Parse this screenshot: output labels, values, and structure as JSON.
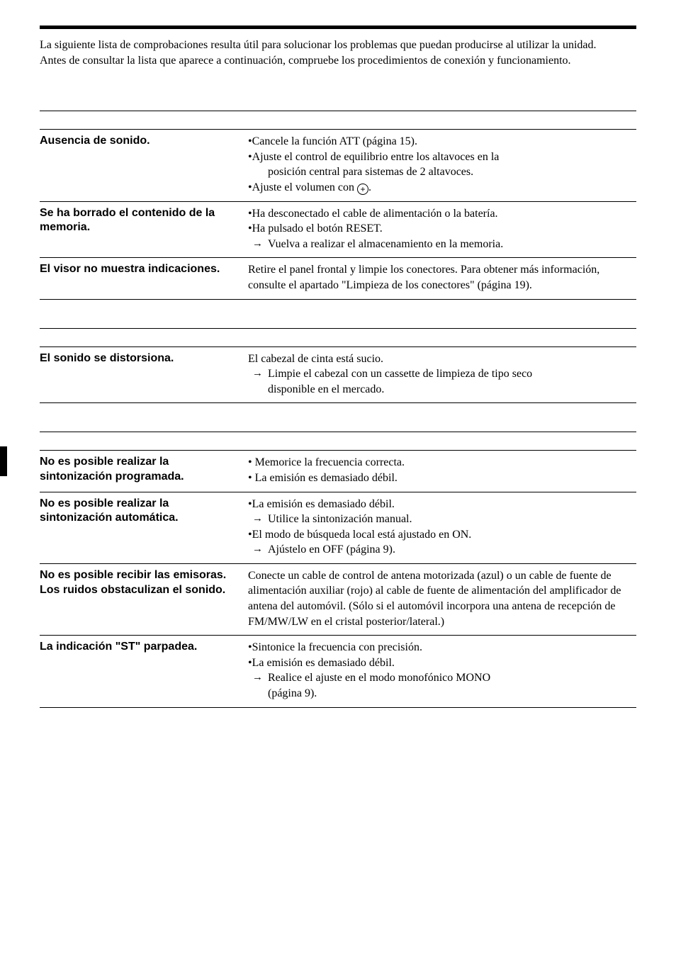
{
  "intro": {
    "line1": "La siguiente lista de comprobaciones resulta útil para solucionar los problemas que puedan producirse al utilizar la unidad.",
    "line2": "Antes de consultar la lista que aparece a continuación, compruebe los procedimientos de conexión y funcionamiento."
  },
  "section1": {
    "rows": [
      {
        "left": "Ausencia de sonido.",
        "right": [
          {
            "type": "bullet",
            "text": "Cancele la función ATT (página 15)."
          },
          {
            "type": "bullet",
            "text": "Ajuste el control de equilibrio entre los altavoces en la"
          },
          {
            "type": "sub",
            "text": "posición central para sistemas de 2 altavoces."
          },
          {
            "type": "bullet-plus",
            "text": "Ajuste el volumen con "
          }
        ]
      },
      {
        "left": "Se ha borrado el contenido de la memoria.",
        "right": [
          {
            "type": "bullet",
            "text": "Ha desconectado el cable de alimentación o la batería."
          },
          {
            "type": "bullet",
            "text": "Ha pulsado el botón RESET."
          },
          {
            "type": "arrow",
            "text": "Vuelva a realizar el almacenamiento en la memoria."
          }
        ]
      },
      {
        "left": "El visor no muestra indicaciones.",
        "right": [
          {
            "type": "plain",
            "text": "Retire el panel frontal y limpie los conectores. Para obtener más información, consulte el apartado \"Limpieza de los conectores\" (página 19)."
          }
        ]
      }
    ]
  },
  "section2": {
    "rows": [
      {
        "left": "El sonido se distorsiona.",
        "right": [
          {
            "type": "plain",
            "text": "El cabezal de cinta está sucio."
          },
          {
            "type": "arrow",
            "text": "Limpie el cabezal con un cassette de limpieza de tipo seco"
          },
          {
            "type": "sub",
            "text": "disponible en el mercado."
          }
        ]
      }
    ]
  },
  "section3": {
    "rows": [
      {
        "left": "No es posible realizar la sintonización programada.",
        "right": [
          {
            "type": "bullet",
            "text": " Memorice la frecuencia correcta."
          },
          {
            "type": "bullet",
            "text": " La emisión es demasiado débil."
          }
        ]
      },
      {
        "left": "No es posible realizar la sintonización automática.",
        "right": [
          {
            "type": "bullet",
            "text": "La emisión es demasiado débil."
          },
          {
            "type": "arrow",
            "text": "Utilice la sintonización manual."
          },
          {
            "type": "bullet",
            "text": "El modo de búsqueda local está ajustado en ON."
          },
          {
            "type": "arrow",
            "text": "Ajústelo en OFF (página 9)."
          }
        ]
      },
      {
        "left": "No es posible recibir las emisoras.\nLos ruidos obstaculizan el sonido.",
        "right": [
          {
            "type": "plain",
            "text": "Conecte un cable de control de antena motorizada (azul) o un cable de fuente de alimentación auxiliar (rojo) al cable de fuente de alimentación del amplificador de antena del automóvil. (Sólo si el automóvil incorpora una antena de recepción de FM/MW/LW en el cristal posterior/lateral.)"
          }
        ]
      },
      {
        "left": "La indicación \"ST\" parpadea.",
        "right": [
          {
            "type": "bullet",
            "text": "Sintonice la frecuencia con precisión."
          },
          {
            "type": "bullet",
            "text": "La emisión es demasiado débil."
          },
          {
            "type": "arrow",
            "text": "Realice el ajuste en el modo monofónico MONO"
          },
          {
            "type": "sub",
            "text": "(página 9)."
          }
        ]
      }
    ]
  },
  "plus_symbol": "+"
}
